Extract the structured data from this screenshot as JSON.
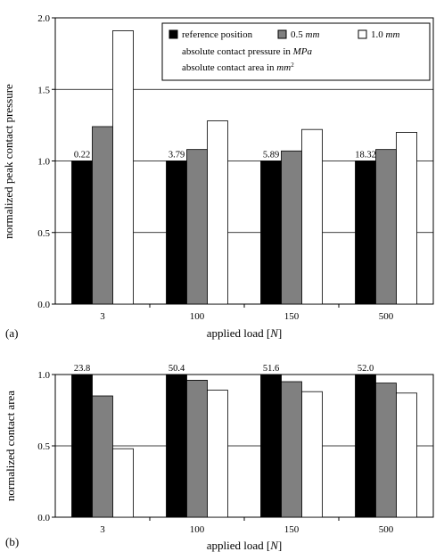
{
  "chart_data": [
    {
      "panel_label": "(a)",
      "type": "bar",
      "categories": [
        "3",
        "100",
        "150",
        "500"
      ],
      "series": [
        {
          "name": "reference position",
          "values": [
            1.0,
            1.0,
            1.0,
            1.0
          ],
          "color": "#000000"
        },
        {
          "name": "0.5 mm",
          "values": [
            1.24,
            1.08,
            1.07,
            1.08
          ],
          "color": "#808080"
        },
        {
          "name": "1.0 mm",
          "values": [
            1.91,
            1.28,
            1.22,
            1.2
          ],
          "color": "#ffffff"
        }
      ],
      "data_labels": [
        "0.22",
        "3.79",
        "5.89",
        "18.32"
      ],
      "xlabel_prefix": "applied load [",
      "xlabel_unit": "N",
      "xlabel_suffix": "]",
      "ylabel": "normalized peak contact pressure",
      "ylim": [
        0,
        2.0
      ],
      "yticks": [
        "0.0",
        "0.5",
        "1.0",
        "1.5",
        "2.0"
      ],
      "grid": true,
      "legend": {
        "placement": "top-right",
        "items": [
          {
            "prefix": "reference position",
            "unit": ""
          },
          {
            "prefix": "0.5 ",
            "unit": "mm"
          },
          {
            "prefix": "1.0 ",
            "unit": "mm"
          }
        ],
        "note1_prefix": "absolute contact pressure in ",
        "note1_unit": "MPa",
        "note2_prefix": "absolute contact area in ",
        "note2_unit": "mm",
        "note2_sup": "2"
      }
    },
    {
      "panel_label": "(b)",
      "type": "bar",
      "categories": [
        "3",
        "100",
        "150",
        "500"
      ],
      "series": [
        {
          "name": "reference position",
          "values": [
            1.0,
            1.0,
            1.0,
            1.0
          ],
          "color": "#000000"
        },
        {
          "name": "0.5 mm",
          "values": [
            0.85,
            0.96,
            0.95,
            0.94
          ],
          "color": "#808080"
        },
        {
          "name": "1.0 mm",
          "values": [
            0.48,
            0.89,
            0.88,
            0.87
          ],
          "color": "#ffffff"
        }
      ],
      "data_labels": [
        "23.8",
        "50.4",
        "51.6",
        "52.0"
      ],
      "xlabel_prefix": "applied load [",
      "xlabel_unit": "N",
      "xlabel_suffix": "]",
      "ylabel": "normalized contact area",
      "ylim": [
        0,
        1.0
      ],
      "yticks": [
        "0.0",
        "0.5",
        "1.0"
      ],
      "grid": true
    }
  ]
}
